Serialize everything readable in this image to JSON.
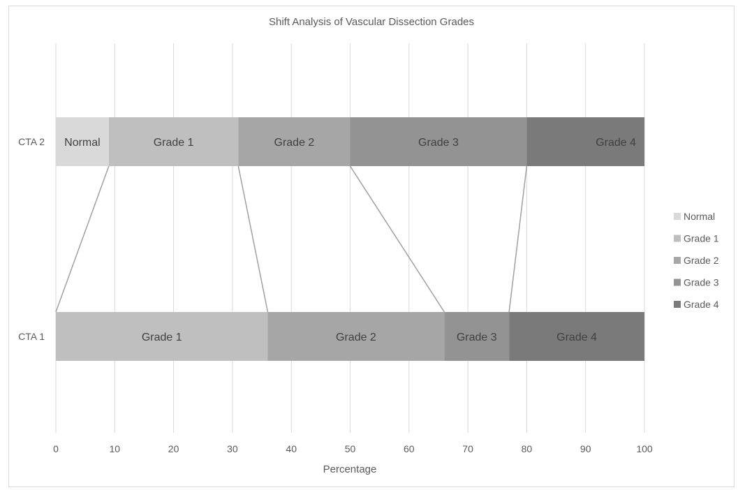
{
  "chart_data": {
    "type": "bar",
    "orientation": "horizontal",
    "stacked": true,
    "title": "Shift Analysis of Vascular Dissection Grades",
    "xlabel": "Percentage",
    "ylabel": "",
    "xlim": [
      0,
      100
    ],
    "x_ticks": [
      "0",
      "10",
      "20",
      "30",
      "40",
      "50",
      "60",
      "70",
      "80",
      "90",
      "100"
    ],
    "grid": true,
    "legend_position": "right",
    "categories": [
      "CTA 2",
      "CTA 1"
    ],
    "series": [
      {
        "name": "Normal",
        "color": "#d9d9d9",
        "values": [
          9,
          0
        ]
      },
      {
        "name": "Grade 1",
        "color": "#bfbfbf",
        "values": [
          22,
          36
        ]
      },
      {
        "name": "Grade 2",
        "color": "#a6a6a6",
        "values": [
          19,
          30
        ]
      },
      {
        "name": "Grade 3",
        "color": "#939393",
        "values": [
          30,
          11
        ]
      },
      {
        "name": "Grade 4",
        "color": "#7a7a7a",
        "values": [
          20,
          23
        ]
      }
    ],
    "connector_color": "#a0a0a0"
  }
}
